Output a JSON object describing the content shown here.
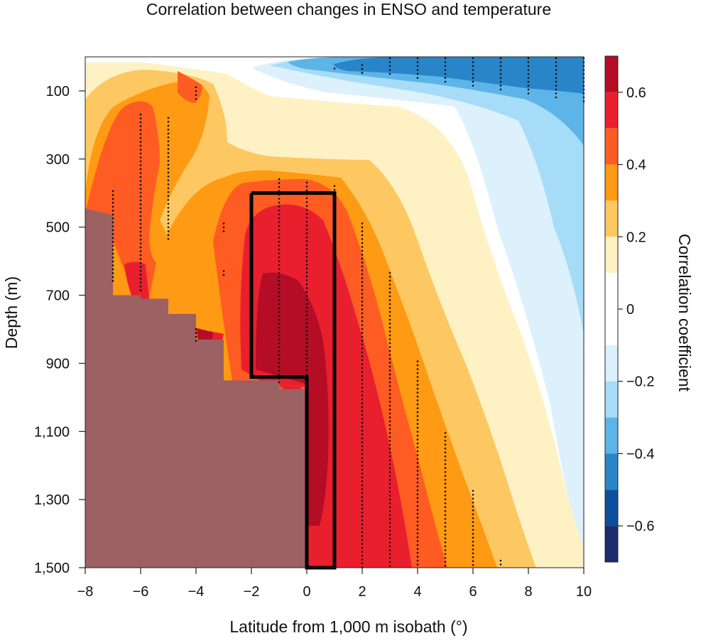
{
  "chart_data": {
    "type": "heatmap",
    "title": "Correlation between changes in ENSO and temperature",
    "xlabel": "Latitude from 1,000 m isobath (°)",
    "ylabel": "Depth (m)",
    "colorbar_label": "Correlation coefficient",
    "xlim": [
      -8,
      10
    ],
    "ylim": [
      1500,
      0
    ],
    "x_ticks": [
      -8,
      -6,
      -4,
      -2,
      0,
      2,
      4,
      6,
      8,
      10
    ],
    "x_tick_labels": [
      "−8",
      "−6",
      "−4",
      "−2",
      "0",
      "2",
      "4",
      "6",
      "8",
      "10"
    ],
    "y_ticks": [
      100,
      300,
      500,
      700,
      900,
      1100,
      1300,
      1500
    ],
    "y_tick_labels": [
      "100",
      "300",
      "500",
      "700",
      "900",
      "1,100",
      "1,300",
      "1,500"
    ],
    "colorbar": {
      "levels": [
        0.7,
        0.6,
        0.5,
        0.4,
        0.3,
        0.2,
        0.1,
        -0.1,
        -0.2,
        -0.3,
        -0.4,
        -0.5,
        -0.6,
        -0.7
      ],
      "colors": [
        "#b40d25",
        "#e91f2e",
        "#ff5c23",
        "#fe9a13",
        "#fdc862",
        "#fef2c4",
        "#ffffff",
        "#dcf1fb",
        "#a6dcf7",
        "#5db4e8",
        "#2a85c8",
        "#0d4f9c",
        "#1a2c69"
      ],
      "ticks": [
        0.6,
        0.4,
        0.2,
        0,
        -0.2,
        -0.4,
        -0.6
      ],
      "tick_labels": [
        "0.6",
        "0.4",
        "0.2",
        "0",
        "−0.2",
        "−0.4",
        "−0.6"
      ]
    },
    "box": [
      [
        -2,
        400
      ],
      [
        1,
        400
      ],
      [
        1,
        1500
      ],
      [
        0,
        1500
      ],
      [
        0,
        940
      ],
      [
        -2,
        940
      ]
    ],
    "land": {
      "color": "#9b6163",
      "profile": [
        [
          -8,
          445
        ],
        [
          -7,
          465
        ],
        [
          -7,
          700
        ],
        [
          -6,
          700
        ],
        [
          -6,
          710
        ],
        [
          -5,
          710
        ],
        [
          -5,
          755
        ],
        [
          -4,
          755
        ],
        [
          -4,
          830
        ],
        [
          -3,
          830
        ],
        [
          -3,
          950
        ],
        [
          -1,
          950
        ],
        [
          -1,
          975
        ],
        [
          0,
          975
        ],
        [
          0,
          1500
        ]
      ]
    },
    "stippling": [
      {
        "x": -7,
        "top": 390,
        "bottom": 660
      },
      {
        "x": -6,
        "top": 165,
        "bottom": 695
      },
      {
        "x": -5,
        "top": 175,
        "bottom": 535
      },
      {
        "x": -4,
        "top": 85,
        "bottom": 135
      },
      {
        "x": -4,
        "top": 795,
        "bottom": 840
      },
      {
        "x": -3,
        "top": 485,
        "bottom": 515
      },
      {
        "x": -3,
        "top": 625,
        "bottom": 650
      },
      {
        "x": -1,
        "top": 355,
        "bottom": 960
      },
      {
        "x": 0,
        "top": 365,
        "bottom": 1500
      },
      {
        "x": 1,
        "top": 375,
        "bottom": 1500
      },
      {
        "x": 1,
        "top": 30,
        "bottom": 45
      },
      {
        "x": 2,
        "top": 20,
        "bottom": 55
      },
      {
        "x": 3,
        "top": 0,
        "bottom": 60
      },
      {
        "x": 4,
        "top": 0,
        "bottom": 65
      },
      {
        "x": 5,
        "top": 0,
        "bottom": 75
      },
      {
        "x": 6,
        "top": 0,
        "bottom": 85
      },
      {
        "x": 7,
        "top": 0,
        "bottom": 105
      },
      {
        "x": 8,
        "top": 0,
        "bottom": 115
      },
      {
        "x": 9,
        "top": 0,
        "bottom": 125
      },
      {
        "x": 10,
        "top": 0,
        "bottom": 135
      },
      {
        "x": 2,
        "top": 485,
        "bottom": 1500
      },
      {
        "x": 3,
        "top": 630,
        "bottom": 1500
      },
      {
        "x": 4,
        "top": 890,
        "bottom": 1500
      },
      {
        "x": 5,
        "top": 1100,
        "bottom": 1500
      },
      {
        "x": 6,
        "top": 1270,
        "bottom": 1500
      },
      {
        "x": 7,
        "top": 1475,
        "bottom": 1500
      }
    ]
  }
}
